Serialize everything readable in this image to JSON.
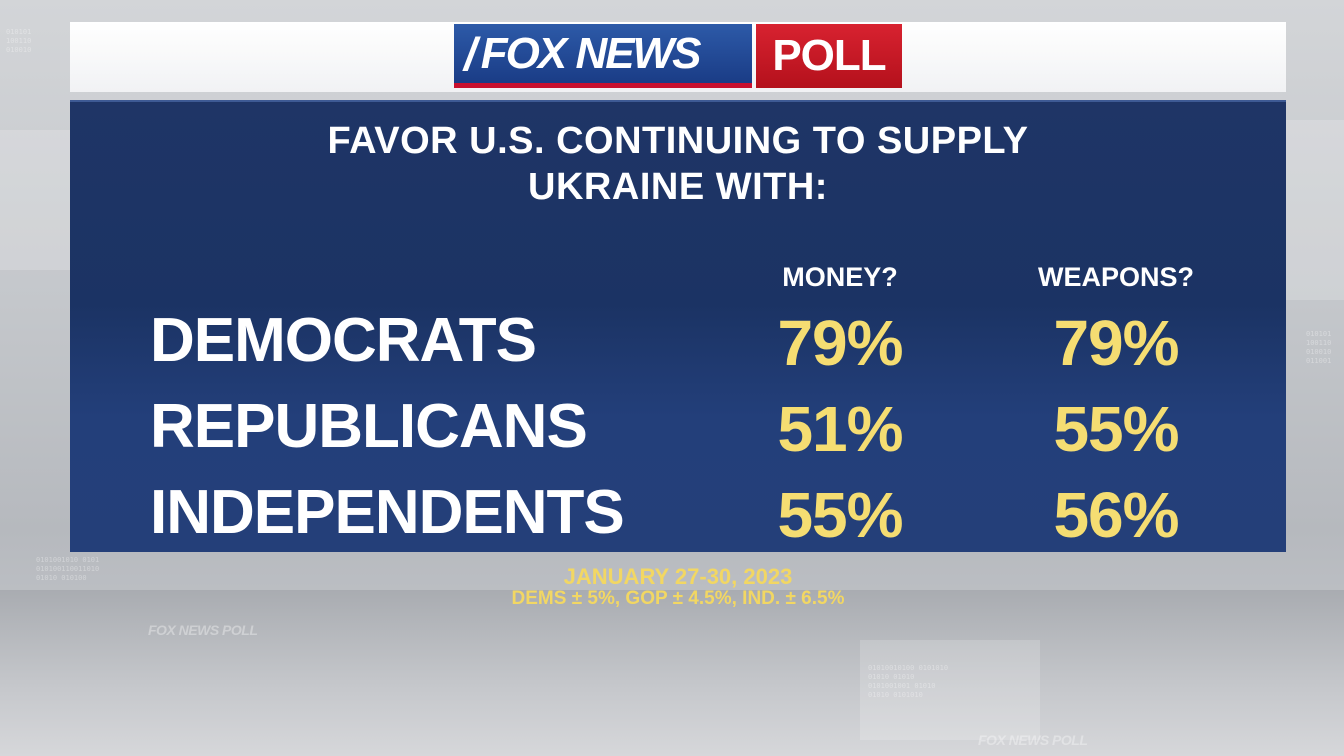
{
  "brand": {
    "logo_network": "FOX NEWS",
    "logo_suffix": "POLL",
    "watermark": "FOX NEWS POLL"
  },
  "chart_data": {
    "type": "table",
    "title_line1": "FAVOR U.S. CONTINUING TO SUPPLY",
    "title_line2": "UKRAINE WITH:",
    "columns": [
      "MONEY?",
      "WEAPONS?"
    ],
    "rows": [
      {
        "label": "DEMOCRATS",
        "values": [
          "79%",
          "79%"
        ]
      },
      {
        "label": "REPUBLICANS",
        "values": [
          "51%",
          "55%"
        ]
      },
      {
        "label": "INDEPENDENTS",
        "values": [
          "55%",
          "56%"
        ]
      }
    ],
    "series": [
      {
        "name": "MONEY?",
        "values": [
          79,
          51,
          55
        ]
      },
      {
        "name": "WEAPONS?",
        "values": [
          79,
          55,
          56
        ]
      }
    ],
    "categories": [
      "DEMOCRATS",
      "REPUBLICANS",
      "INDEPENDENTS"
    ]
  },
  "footer": {
    "date": "JANUARY 27-30, 2023",
    "margin_of_error": "DEMS ± 5%, GOP ± 4.5%, IND. ± 6.5%"
  },
  "colors": {
    "panel_bg": "#1b3364",
    "value_text": "#f5dd72",
    "footer_text": "#f2d763",
    "logo_blue": "#1a3c86",
    "logo_red": "#c8102e"
  }
}
